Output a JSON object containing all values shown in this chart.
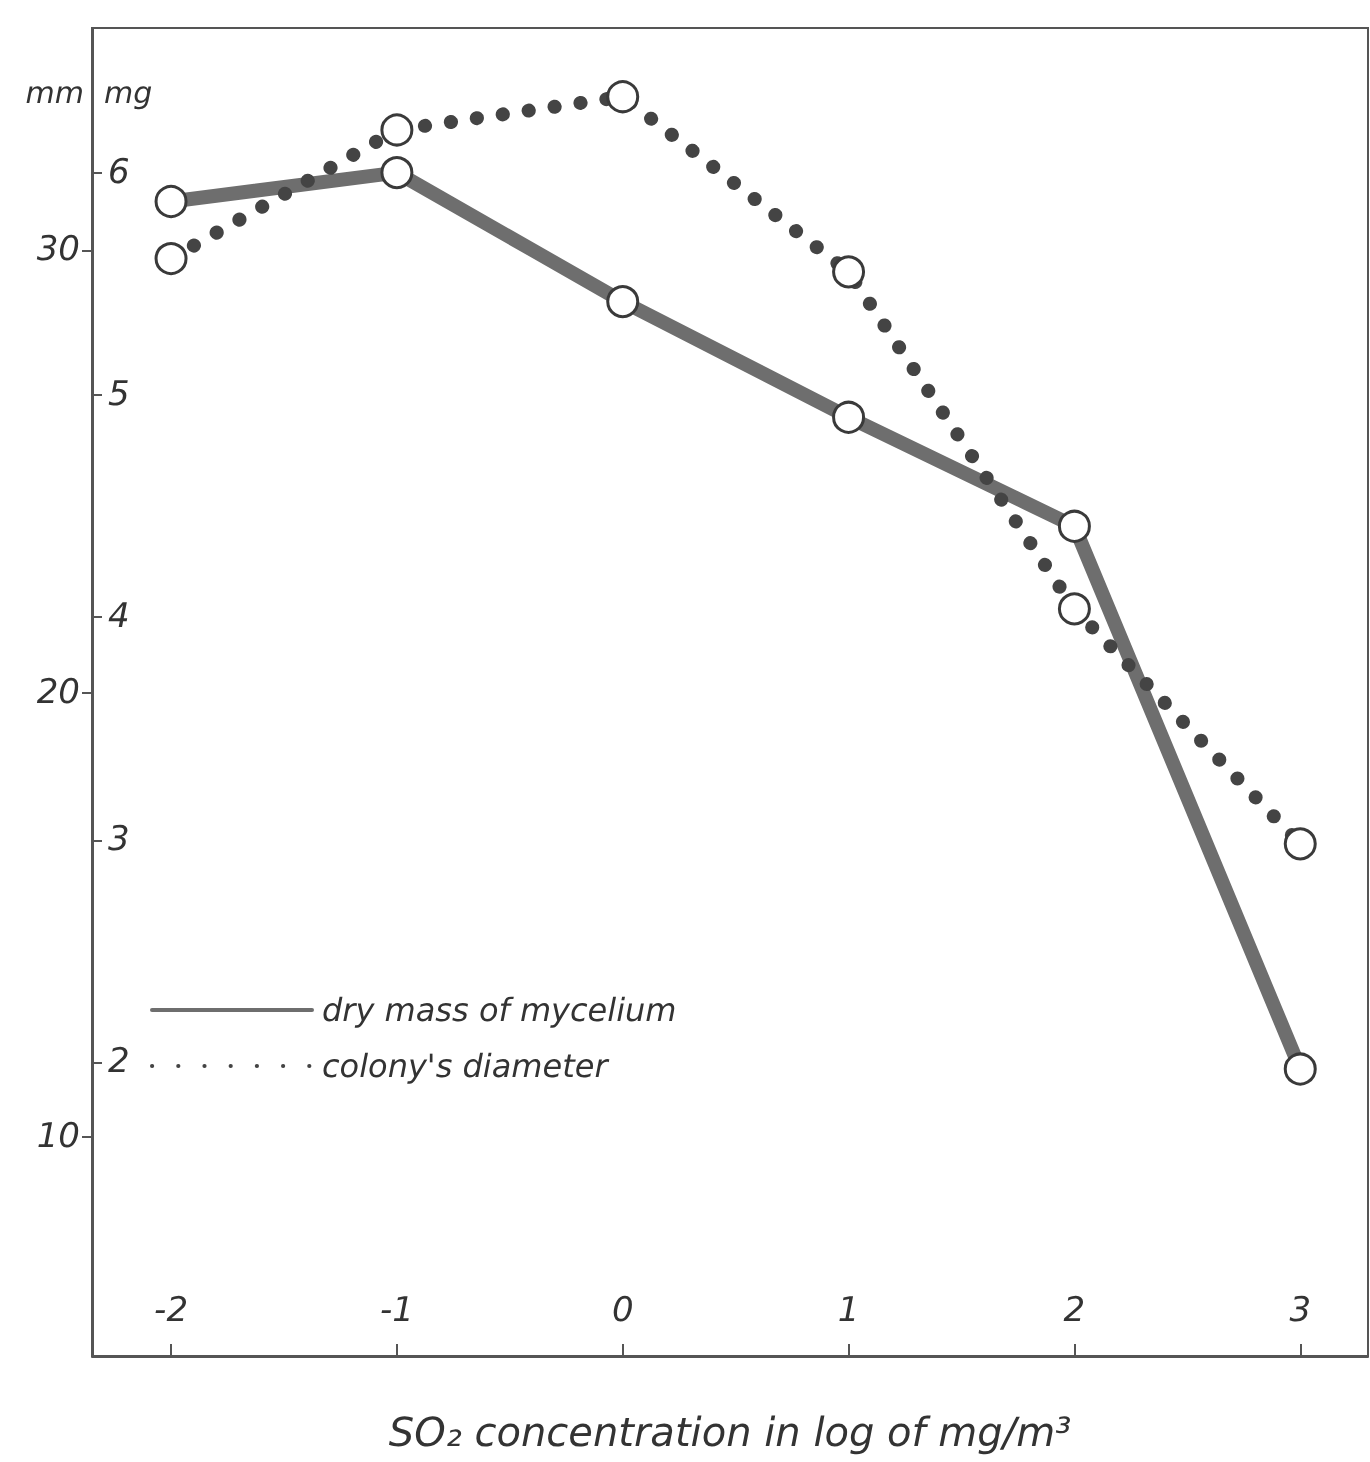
{
  "chart_data": {
    "type": "line",
    "xlabel": "SO₂ concentration in log of mg/m³",
    "ylabel": "mm",
    "y2label": "mg",
    "x": [
      -2,
      -1,
      0,
      1,
      2,
      3
    ],
    "xlim": [
      -2.35,
      3.3
    ],
    "xticks": [
      -2,
      -1,
      0,
      1,
      2,
      3
    ],
    "ylim": [
      5.05,
      35
    ],
    "yticks": [
      10,
      20,
      30
    ],
    "y2lim": [
      0.68,
      6.65
    ],
    "y2ticks": [
      2,
      3,
      4,
      5,
      6
    ],
    "series": [
      {
        "name": "dry mass of mycelium",
        "color": "#6e6e6e",
        "axis": "y2",
        "line_style": "solid",
        "values": [
          5.87,
          6.0,
          5.42,
          4.9,
          4.41,
          1.97
        ]
      },
      {
        "name": "colony's diameter",
        "color": "#444444",
        "axis": "y",
        "line_style": "dotted",
        "values": [
          29.8,
          32.7,
          33.45,
          29.5,
          21.9,
          16.6
        ]
      }
    ],
    "marker": "circle",
    "legend": "bottom left",
    "grid": false
  }
}
